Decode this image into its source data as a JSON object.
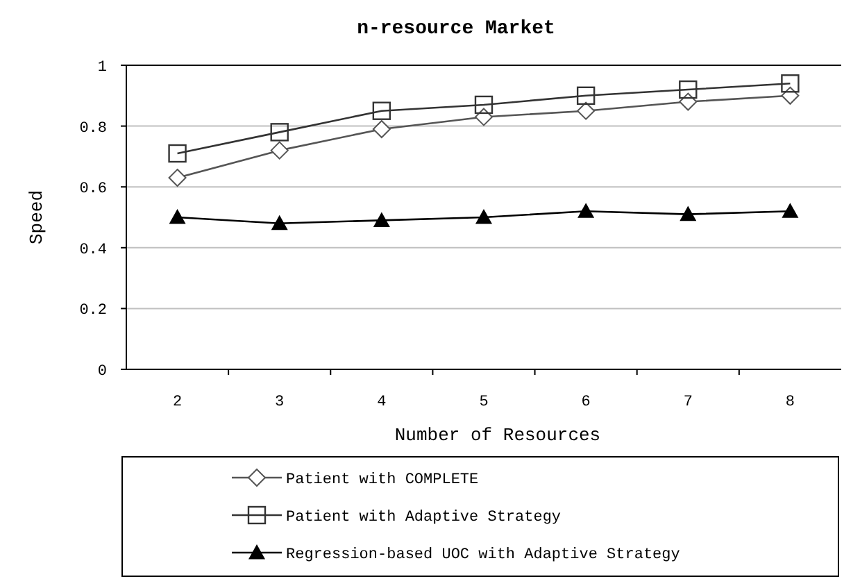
{
  "chart_data": {
    "type": "line",
    "title": "n-resource Market",
    "xlabel": "Number of Resources",
    "ylabel": "Speed",
    "categories": [
      "2",
      "3",
      "4",
      "5",
      "6",
      "7",
      "8"
    ],
    "series": [
      {
        "name": "Patient with COMPLETE",
        "color": "#555555",
        "marker": "diamond",
        "values": [
          0.63,
          0.72,
          0.79,
          0.83,
          0.85,
          0.88,
          0.9
        ]
      },
      {
        "name": "Patient with Adaptive Strategy",
        "color": "#333333",
        "marker": "square",
        "values": [
          0.71,
          0.78,
          0.85,
          0.87,
          0.9,
          0.92,
          0.94
        ]
      },
      {
        "name": "Regression-based UOC with Adaptive Strategy",
        "color": "#000000",
        "marker": "triangle",
        "values": [
          0.5,
          0.48,
          0.49,
          0.5,
          0.52,
          0.51,
          0.52
        ]
      }
    ],
    "ylim": [
      0,
      1
    ],
    "yticks": [
      0,
      0.2,
      0.4,
      0.6,
      0.8,
      1
    ],
    "grid": "y",
    "legend": "bottom",
    "line_style": "solid"
  }
}
